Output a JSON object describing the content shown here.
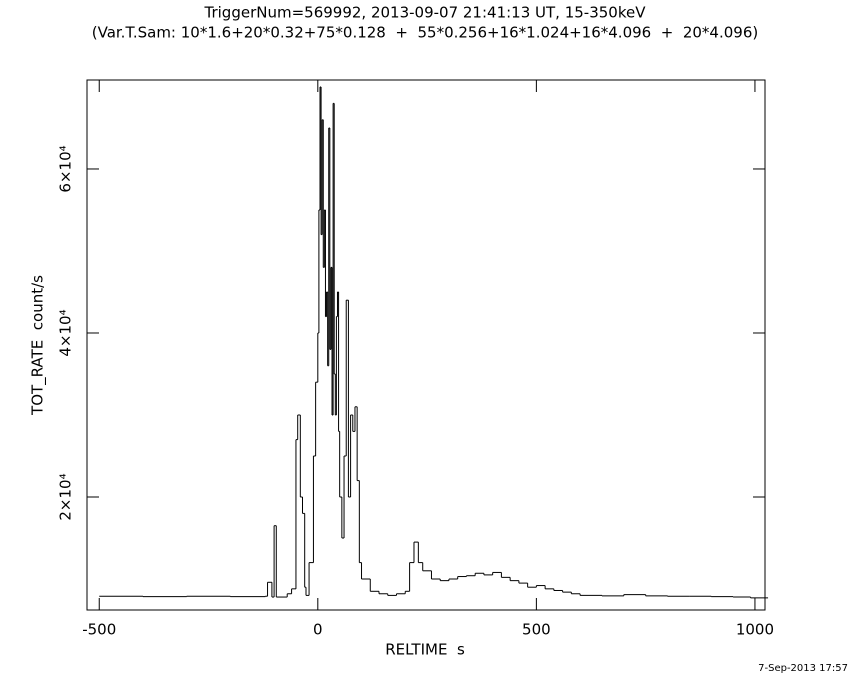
{
  "chart_data": {
    "type": "step",
    "title": "TriggerNum=569992, 2013-09-07 21:41:13 UT, 15-350keV",
    "subtitle": "(Var.T.Sam: 10*1.6+20*0.32+75*0.128  +  55*0.256+16*1.024+16*4.096  +  20*4.096)",
    "x_label": "RELTIME  s",
    "y_label": "TOT_RATE  count/s",
    "footnote": "7-Sep-2013 17:57",
    "color": "#000000",
    "x": [
      -500,
      -400,
      -300,
      -200,
      -120,
      -115,
      -105,
      -100,
      -95,
      -70,
      -60,
      -50,
      -46,
      -40,
      -35,
      -30,
      -27,
      -20,
      -10,
      -5,
      0,
      2.5,
      5,
      7.5,
      10,
      12.5,
      15,
      17.5,
      20,
      22.5,
      25,
      27.5,
      30,
      32.5,
      35,
      37.5,
      40,
      42.5,
      45,
      47.5,
      50,
      55,
      60,
      65,
      70,
      75,
      80,
      85,
      90,
      95,
      100,
      120,
      140,
      160,
      180,
      200,
      210,
      220,
      230,
      240,
      260,
      280,
      300,
      320,
      340,
      360,
      380,
      400,
      420,
      440,
      460,
      480,
      500,
      520,
      540,
      560,
      580,
      600,
      650,
      700,
      750,
      800,
      850,
      900,
      950,
      990
    ],
    "values": [
      7900,
      7850,
      7900,
      7850,
      7900,
      9600,
      7800,
      16500,
      7800,
      8200,
      8800,
      27000,
      30000,
      20000,
      18000,
      9000,
      8000,
      12000,
      25000,
      34000,
      40000,
      55000,
      70000,
      52000,
      66000,
      48000,
      55000,
      42000,
      45000,
      36000,
      65000,
      38000,
      48000,
      30000,
      68000,
      35000,
      30000,
      42000,
      45000,
      28000,
      20000,
      15000,
      25000,
      44000,
      20000,
      30000,
      28000,
      31000,
      22000,
      12000,
      10000,
      8500,
      8200,
      8000,
      8200,
      8500,
      12000,
      14500,
      12000,
      11000,
      10000,
      9800,
      10000,
      10300,
      10400,
      10700,
      10500,
      10800,
      10200,
      9800,
      9500,
      9000,
      9200,
      8800,
      8600,
      8400,
      8200,
      8000,
      7950,
      8100,
      7950,
      7900,
      7900,
      7850,
      7800,
      7700
    ],
    "xlim": [
      -528,
      1023
    ],
    "ylim": [
      6220,
      70850
    ],
    "xticks": [
      -500,
      0,
      500,
      1000
    ],
    "yticks": [
      {
        "value": 20000,
        "label": "2×10⁴"
      },
      {
        "value": 40000,
        "label": "4×10⁴"
      },
      {
        "value": 60000,
        "label": "6×10⁴"
      }
    ]
  }
}
